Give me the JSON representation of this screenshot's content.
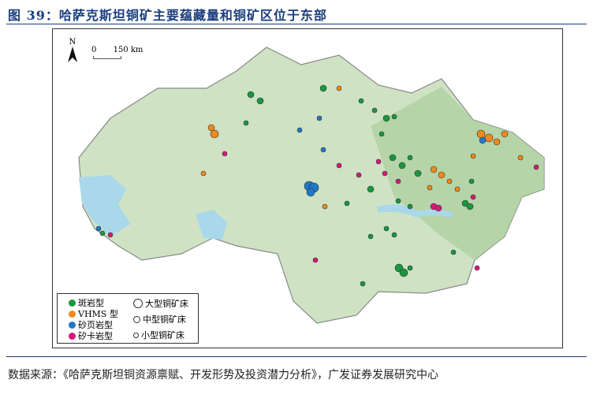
{
  "figure": {
    "title": "图 39：哈萨克斯坦铜矿主要蕴藏量和铜矿区位于东部"
  },
  "map": {
    "north_label": "N",
    "scale": {
      "zero": "0",
      "distance": "150 km"
    },
    "colors": {
      "land": "#cfe3c4",
      "land_dark": "#a9cf9c",
      "water": "#a8d8ea",
      "border": "#888888"
    },
    "legend": {
      "types": [
        {
          "label": "斑岩型",
          "color": "#1a9641"
        },
        {
          "label": "VHMS 型",
          "color": "#f08a1c"
        },
        {
          "label": "砂页岩型",
          "color": "#1f78c8"
        },
        {
          "label": "矽卡岩型",
          "color": "#d6197a"
        }
      ],
      "sizes": [
        {
          "label": "大型铜矿床"
        },
        {
          "label": "中型铜矿床"
        },
        {
          "label": "小型铜矿床"
        }
      ]
    }
  },
  "source": {
    "text": "数据来源：《哈萨克斯坦铜资源禀赋、开发形势及投资潜力分析》，广发证券发展研究中心"
  }
}
